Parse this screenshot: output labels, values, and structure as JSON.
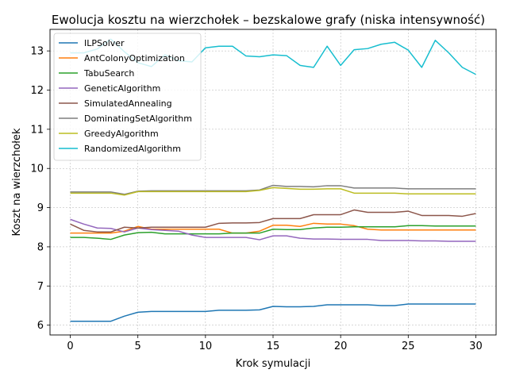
{
  "chart_data": {
    "type": "line",
    "title": "Ewolucja kosztu na wierzchołek – bezskalowe grafy (niska intensywność)",
    "xlabel": "Krok symulacji",
    "ylabel": "Koszt na wierzchołek",
    "xlim": [
      -1.5,
      31.5
    ],
    "ylim": [
      5.75,
      13.55
    ],
    "xticks": [
      0,
      5,
      10,
      15,
      20,
      25,
      30
    ],
    "yticks": [
      6,
      7,
      8,
      9,
      10,
      11,
      12,
      13
    ],
    "grid": true,
    "legend_position": "top-left",
    "x": [
      0,
      1,
      2,
      3,
      4,
      5,
      6,
      7,
      8,
      9,
      10,
      11,
      12,
      13,
      14,
      15,
      16,
      17,
      18,
      19,
      20,
      21,
      22,
      23,
      24,
      25,
      26,
      27,
      28,
      29,
      30
    ],
    "series": [
      {
        "name": "ILPSolver",
        "color": "#1f77b4",
        "values": [
          6.1,
          6.1,
          6.1,
          6.1,
          6.23,
          6.33,
          6.35,
          6.35,
          6.35,
          6.35,
          6.35,
          6.38,
          6.38,
          6.38,
          6.39,
          6.48,
          6.47,
          6.47,
          6.48,
          6.52,
          6.52,
          6.52,
          6.52,
          6.5,
          6.5,
          6.54,
          6.54,
          6.54,
          6.54,
          6.54,
          6.54
        ]
      },
      {
        "name": "AntColonyOptimization",
        "color": "#ff7f0e",
        "values": [
          8.35,
          8.35,
          8.35,
          8.35,
          8.4,
          8.52,
          8.45,
          8.45,
          8.45,
          8.45,
          8.45,
          8.45,
          8.35,
          8.35,
          8.4,
          8.55,
          8.55,
          8.52,
          8.6,
          8.58,
          8.58,
          8.54,
          8.45,
          8.43,
          8.43,
          8.43,
          8.43,
          8.43,
          8.43,
          8.43,
          8.43
        ]
      },
      {
        "name": "TabuSearch",
        "color": "#2ca02c",
        "values": [
          8.24,
          8.24,
          8.22,
          8.19,
          8.3,
          8.36,
          8.37,
          8.33,
          8.33,
          8.33,
          8.33,
          8.33,
          8.35,
          8.35,
          8.35,
          8.45,
          8.44,
          8.44,
          8.48,
          8.5,
          8.5,
          8.51,
          8.51,
          8.51,
          8.51,
          8.54,
          8.54,
          8.53,
          8.53,
          8.53,
          8.53
        ]
      },
      {
        "name": "GeneticAlgorithm",
        "color": "#9467bd",
        "values": [
          8.7,
          8.58,
          8.48,
          8.47,
          8.38,
          8.48,
          8.44,
          8.42,
          8.4,
          8.3,
          8.24,
          8.24,
          8.24,
          8.24,
          8.18,
          8.28,
          8.28,
          8.22,
          8.2,
          8.2,
          8.19,
          8.19,
          8.19,
          8.16,
          8.16,
          8.16,
          8.15,
          8.15,
          8.14,
          8.14,
          8.14
        ]
      },
      {
        "name": "SimulatedAnnealing",
        "color": "#8c564b",
        "values": [
          8.58,
          8.42,
          8.38,
          8.38,
          8.5,
          8.48,
          8.5,
          8.5,
          8.5,
          8.5,
          8.5,
          8.6,
          8.61,
          8.61,
          8.62,
          8.72,
          8.72,
          8.72,
          8.82,
          8.82,
          8.82,
          8.94,
          8.88,
          8.88,
          8.88,
          8.91,
          8.8,
          8.8,
          8.8,
          8.78,
          8.85
        ]
      },
      {
        "name": "DominatingSetAlgorithm",
        "color": "#7f7f7f",
        "values": [
          9.4,
          9.4,
          9.4,
          9.4,
          9.34,
          9.42,
          9.43,
          9.43,
          9.43,
          9.43,
          9.43,
          9.43,
          9.43,
          9.43,
          9.45,
          9.57,
          9.54,
          9.54,
          9.53,
          9.56,
          9.56,
          9.5,
          9.5,
          9.5,
          9.5,
          9.48,
          9.48,
          9.48,
          9.48,
          9.48,
          9.48
        ]
      },
      {
        "name": "GreedyAlgorithm",
        "color": "#bcbd22",
        "values": [
          9.37,
          9.37,
          9.37,
          9.37,
          9.32,
          9.41,
          9.41,
          9.41,
          9.41,
          9.41,
          9.41,
          9.41,
          9.41,
          9.41,
          9.44,
          9.51,
          9.49,
          9.47,
          9.47,
          9.48,
          9.48,
          9.37,
          9.37,
          9.37,
          9.37,
          9.35,
          9.35,
          9.35,
          9.35,
          9.35,
          9.35
        ]
      },
      {
        "name": "RandomizedAlgorithm",
        "color": "#17becf",
        "values": [
          12.95,
          12.95,
          13.05,
          13.3,
          12.98,
          12.7,
          12.6,
          12.9,
          12.75,
          12.72,
          13.08,
          13.12,
          13.12,
          12.87,
          12.85,
          12.9,
          12.88,
          12.63,
          12.58,
          13.12,
          12.63,
          13.03,
          13.06,
          13.17,
          13.22,
          13.02,
          12.58,
          13.27,
          12.95,
          12.58,
          12.4
        ]
      }
    ]
  }
}
